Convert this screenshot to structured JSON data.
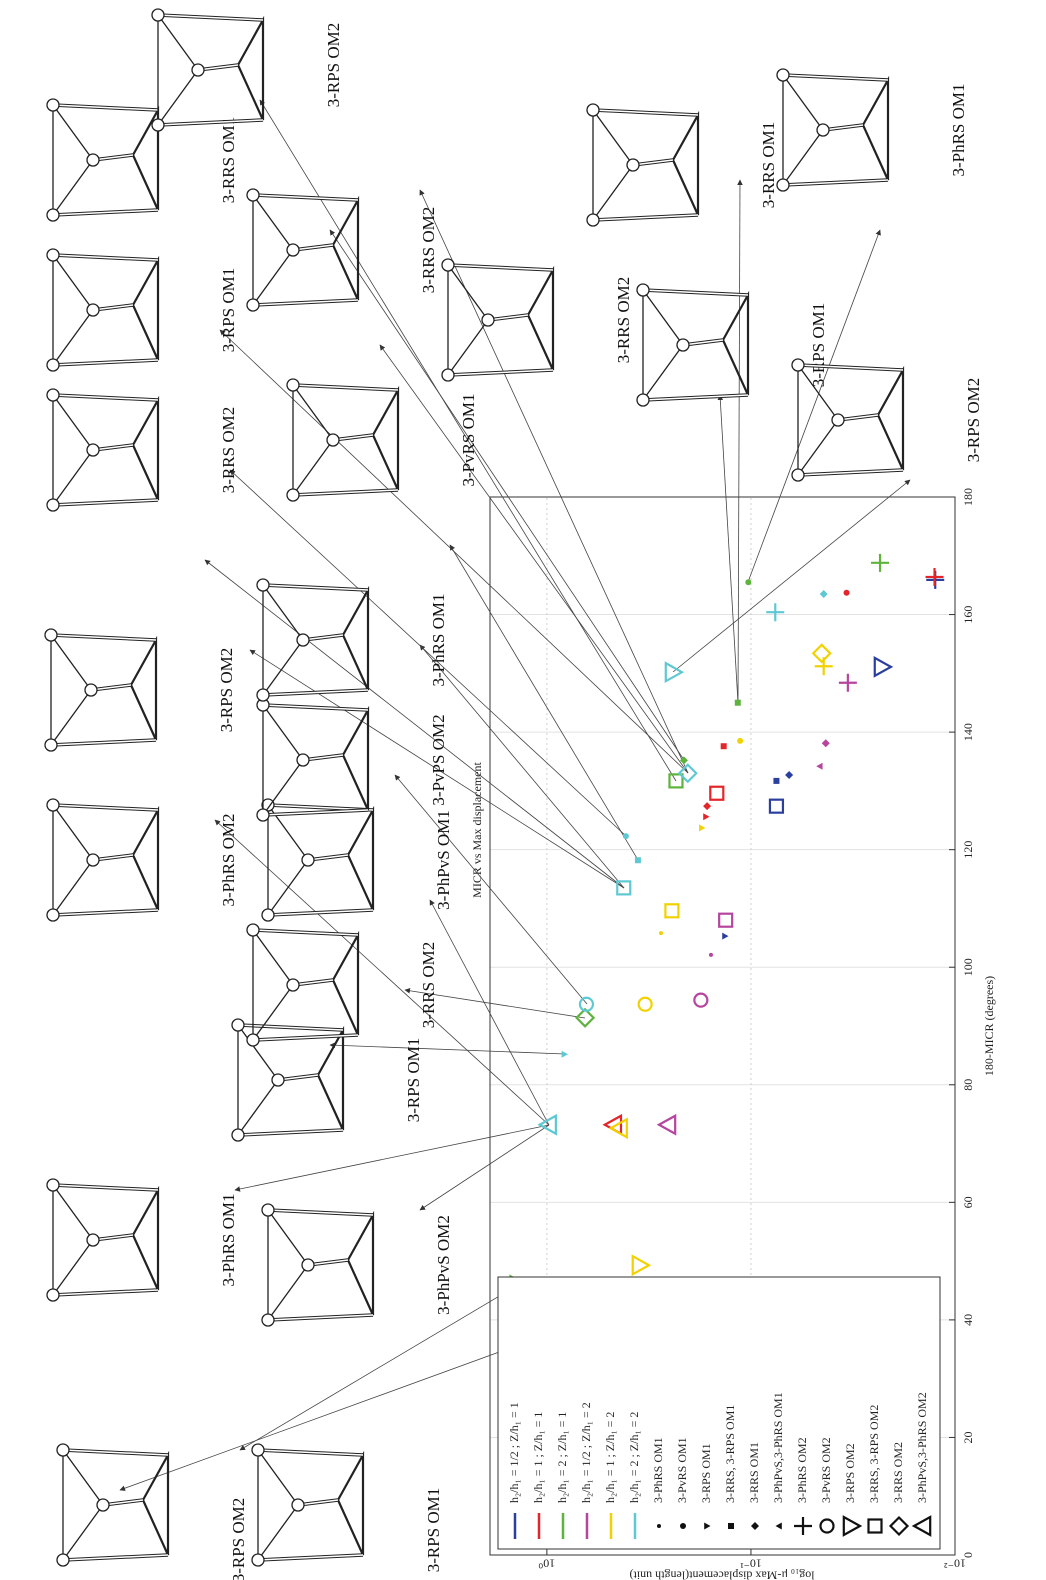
{
  "chart_data": {
    "type": "scatter",
    "title": "MICR vs Max displacement",
    "x_label": "180-MICR (degrees)",
    "y_label": "log₁₀ μ-Max displacement(length unit)",
    "xlim": [
      0,
      180
    ],
    "xticks": [
      0,
      20,
      40,
      60,
      80,
      100,
      120,
      140,
      160,
      180
    ],
    "ylim": [
      0.01,
      1.9
    ],
    "log_y": true,
    "yticks": [
      {
        "value": 0.01,
        "label": "10⁻²"
      },
      {
        "value": 0.1,
        "label": "10⁻¹"
      },
      {
        "value": 1,
        "label": "10⁰"
      }
    ],
    "grid": true,
    "legend": "lower left",
    "series": [
      {
        "name": "h₂/h₁ = 1/2 ; Z/h₁ = 1",
        "color": "#2b3f9e",
        "x": [
          165.9,
          151.1,
          132.7,
          131.7,
          127.4,
          105.3
        ],
        "values": [
          0.0125,
          0.0228,
          0.065,
          0.075,
          0.075,
          0.134
        ],
        "markers": [
          "plus",
          "tri-down",
          "diamond-filled",
          "square-filled",
          "square",
          "tri-down-filled"
        ]
      },
      {
        "name": "h₂/h₁ = 1 ; Z/h₁ = 1",
        "color": "#e4262b",
        "x": [
          166.4,
          163.7,
          137.6,
          129.6,
          127.4,
          125.6,
          73.2
        ],
        "values": [
          0.0126,
          0.034,
          0.136,
          0.147,
          0.164,
          0.166,
          0.47
        ],
        "markers": [
          "plus",
          "dot",
          "square-filled",
          "square",
          "diamond-filled",
          "tri-down-filled",
          "tri-up"
        ]
      },
      {
        "name": "h₂/h₁ = 2 ; Z/h₁ = 1",
        "color": "#5db33b",
        "x": [
          168.8,
          165.5,
          145.0,
          135.2,
          131.7,
          91.4,
          45.9,
          35.4
        ],
        "values": [
          0.0233,
          0.103,
          0.116,
          0.213,
          0.233,
          0.65,
          1.39,
          1.47
        ],
        "markers": [
          "plus",
          "dot",
          "square-filled",
          "diamond-filled",
          "square",
          "diamond",
          "tri-down",
          "tri-up-filled"
        ]
      },
      {
        "name": "h₂/h₁ = 1/2 ; Z/h₁ = 2",
        "color": "#b5459f",
        "x": [
          148.4,
          138.1,
          134.2,
          108.0,
          102.1,
          94.4,
          73.2,
          45.1
        ],
        "values": [
          0.0335,
          0.043,
          0.046,
          0.133,
          0.157,
          0.176,
          0.255,
          0.2
        ],
        "markers": [
          "plus",
          "diamond-filled",
          "tri-up-filled",
          "square",
          "dot-small",
          "circle",
          "tri-up",
          "tri-down"
        ]
      },
      {
        "name": "h₂/h₁ = 1 ; Z/h₁ = 2",
        "color": "#f1d200",
        "x": [
          153.4,
          151.2,
          138.5,
          123.7,
          109.6,
          105.8,
          93.7,
          72.6,
          49.3
        ],
        "values": [
          0.045,
          0.044,
          0.113,
          0.174,
          0.244,
          0.276,
          0.33,
          0.44,
          0.35
        ],
        "markers": [
          "diamond",
          "plus",
          "dot",
          "tri-down-filled",
          "square",
          "dot-small",
          "circle",
          "tri-up",
          "tri-down"
        ]
      },
      {
        "name": "h₂/h₁ = 2 ; Z/h₁ = 2",
        "color": "#5ec8d3",
        "x": [
          163.5,
          160.4,
          150.2,
          133.0,
          122.3,
          118.2,
          113.5,
          93.7,
          85.2,
          73.2
        ],
        "values": [
          0.044,
          0.076,
          0.241,
          0.204,
          0.41,
          0.358,
          0.42,
          0.64,
          0.82,
          0.98
        ],
        "markers": [
          "diamond-filled",
          "plus",
          "tri-down",
          "diamond",
          "dot",
          "square-filled",
          "square",
          "circle",
          "tri-down-filled",
          "tri-up"
        ]
      }
    ],
    "marker_legend": [
      {
        "label": "3-PhRS OM1",
        "shape": "dot-small"
      },
      {
        "label": "3-PvRS OM1",
        "shape": "dot"
      },
      {
        "label": "3-RPS OM1",
        "shape": "tri-down-filled"
      },
      {
        "label": "3-RRS, 3-RPS OM1",
        "shape": "square-filled"
      },
      {
        "label": "3-RRS OM1",
        "shape": "diamond-filled"
      },
      {
        "label": "3-PhPvS,3-PhRS OM1",
        "shape": "tri-up-filled"
      },
      {
        "label": "3-PhRS OM2",
        "shape": "plus"
      },
      {
        "label": "3-PvRS OM2",
        "shape": "circle"
      },
      {
        "label": "3-RPS OM2",
        "shape": "tri-down"
      },
      {
        "label": "3-RRS, 3-RPS OM2",
        "shape": "square"
      },
      {
        "label": "3-RRS OM2",
        "shape": "diamond"
      },
      {
        "label": "3-PhPvS,3-PhRS OM2",
        "shape": "tri-up"
      }
    ]
  },
  "figure_labels": [
    "3-RPS OM2",
    "3-RPS OM1",
    "3-PhRS OM1",
    "3-PhPvS OM2",
    "3-PhRS OM2",
    "3-PhPvS OM1",
    "3-RPS OM1",
    "3-RRS OM2",
    "3-PvPS OM2",
    "3-RPS OM2",
    "3-PhRS OM1",
    "3-RRS OM2",
    "3-PvRS OM1",
    "3-RPS OM1",
    "3-RRS OM1",
    "3-RPS OM2",
    "3-RRS OM2",
    "3-RRS OM2",
    "3-RRS OM1",
    "3-RPS OM1",
    "3-PhRS OM1",
    "3-RPS OM2"
  ]
}
